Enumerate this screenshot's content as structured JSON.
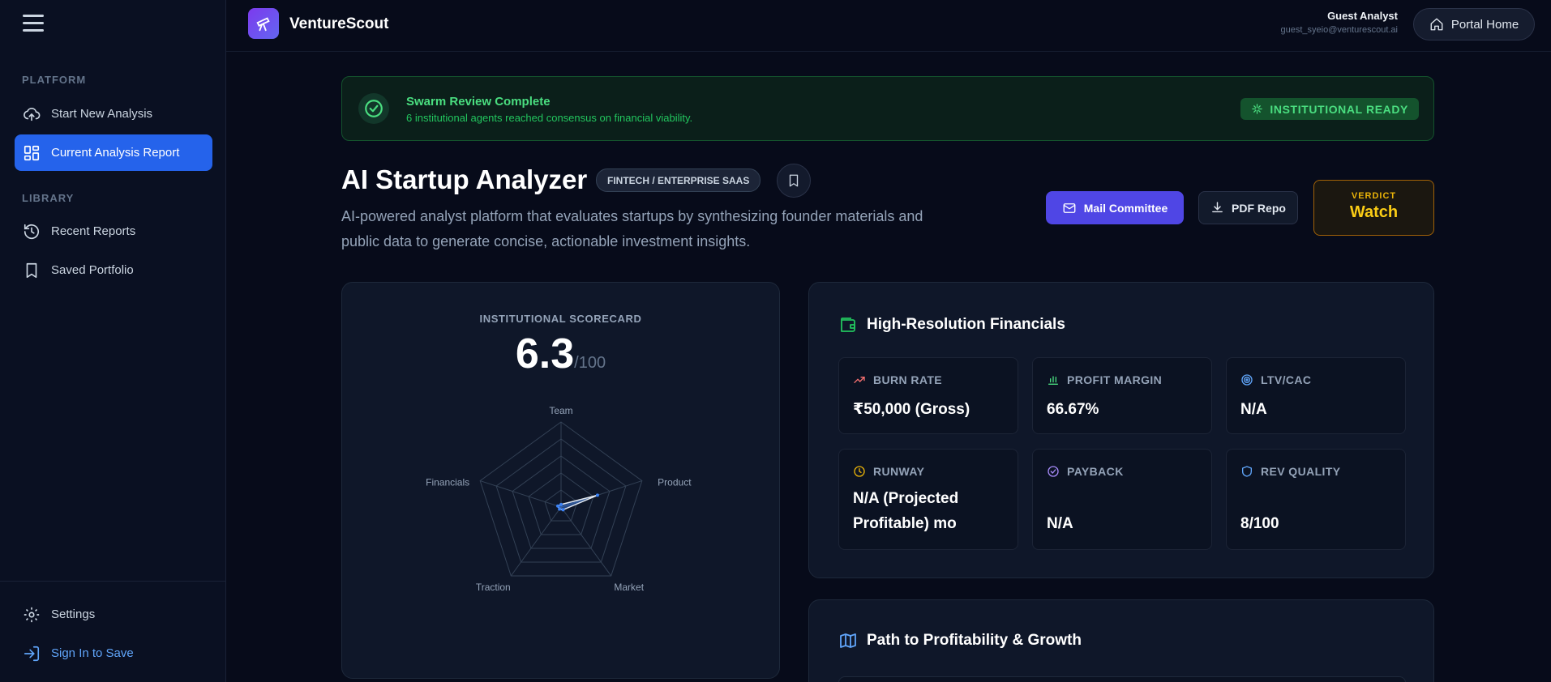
{
  "sidebar": {
    "platform_heading": "PLATFORM",
    "library_heading": "LIBRARY",
    "items": [
      {
        "label": "Start New Analysis",
        "icon": "cloud-upload-icon"
      },
      {
        "label": "Current Analysis Report",
        "icon": "dashboard-icon",
        "active": true
      },
      {
        "label": "Recent Reports",
        "icon": "history-icon"
      },
      {
        "label": "Saved Portfolio",
        "icon": "bookmark-icon"
      }
    ],
    "settings_label": "Settings",
    "signin_label": "Sign In to Save"
  },
  "topbar": {
    "brand": "VentureScout",
    "user_name": "Guest Analyst",
    "user_email": "guest_syeio@venturescout.ai",
    "portal_label": "Portal Home"
  },
  "banner": {
    "title": "Swarm Review Complete",
    "subtitle": "6 institutional agents reached consensus on financial viability.",
    "badge": "INSTITUTIONAL READY"
  },
  "header": {
    "title": "AI Startup Analyzer",
    "tag": "FINTECH / ENTERPRISE SAAS",
    "description": "AI-powered analyst platform that evaluates startups by synthesizing founder materials and public data to generate concise, actionable investment insights.",
    "mail_label": "Mail Committee",
    "pdf_label": "PDF Repo",
    "verdict_label": "VERDICT",
    "verdict_value": "Watch"
  },
  "scorecard": {
    "label": "INSTITUTIONAL SCORECARD",
    "score": "6.3",
    "max": "/100",
    "axes": [
      "Team",
      "Product",
      "Market",
      "Traction",
      "Financials"
    ],
    "values": [
      3,
      45,
      4,
      3,
      4
    ]
  },
  "financials": {
    "title": "High-Resolution Financials",
    "metrics": [
      {
        "label": "BURN RATE",
        "value": "₹50,000 (Gross)",
        "icon": "trending-up-icon"
      },
      {
        "label": "PROFIT MARGIN",
        "value": "66.67%",
        "icon": "bar-chart-icon"
      },
      {
        "label": "LTV/CAC",
        "value": "N/A",
        "icon": "target-icon"
      },
      {
        "label": "RUNWAY",
        "value": "N/A (Projected Profitable) mo",
        "icon": "clock-icon"
      },
      {
        "label": "PAYBACK",
        "value": "N/A",
        "icon": "check-circle-icon"
      },
      {
        "label": "REV QUALITY",
        "value": "8/100",
        "icon": "shield-icon"
      }
    ]
  },
  "growth": {
    "title": "Path to Profitability & Growth"
  },
  "colors": {
    "accent": "#2563eb",
    "success": "#4ade80",
    "verdict": "#facc15",
    "background": "#070b1a"
  }
}
